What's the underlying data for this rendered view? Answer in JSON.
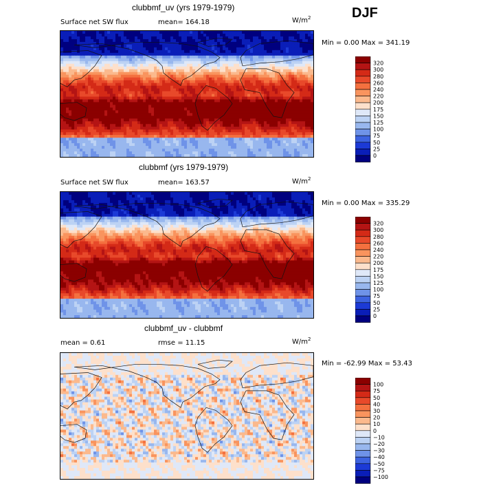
{
  "season": "DJF",
  "panels": [
    {
      "title": "clubbmf_uv (yrs 1979-1979)",
      "left_label": "Surface net SW flux",
      "stat_label": "mean= 164.18",
      "units": "W/m",
      "units_exp": "2",
      "min_text": "Min =    0.00 Max = 341.19",
      "colorbar_labels": [
        "320",
        "300",
        "280",
        "260",
        "240",
        "220",
        "200",
        "175",
        "150",
        "125",
        "100",
        "75",
        "50",
        "25",
        "0"
      ],
      "colorbar_colors": [
        "#8b0000",
        "#b41414",
        "#d42a17",
        "#e8492a",
        "#f4703f",
        "#f9945e",
        "#fbb98d",
        "#fde0cb",
        "#dfe8f8",
        "#bcd2f4",
        "#98b7ee",
        "#6f93e8",
        "#3d63e0",
        "#1c3ad6",
        "#0a1eb8",
        "#00007f"
      ],
      "field": "sw"
    },
    {
      "title": "clubbmf (yrs 1979-1979)",
      "left_label": "Surface net SW flux",
      "stat_label": "mean= 163.57",
      "units": "W/m",
      "units_exp": "2",
      "min_text": "Min =    0.00 Max = 335.29",
      "colorbar_labels": [
        "320",
        "300",
        "280",
        "260",
        "240",
        "220",
        "200",
        "175",
        "150",
        "125",
        "100",
        "75",
        "50",
        "25",
        "0"
      ],
      "colorbar_colors": [
        "#8b0000",
        "#b41414",
        "#d42a17",
        "#e8492a",
        "#f4703f",
        "#f9945e",
        "#fbb98d",
        "#fde0cb",
        "#dfe8f8",
        "#bcd2f4",
        "#98b7ee",
        "#6f93e8",
        "#3d63e0",
        "#1c3ad6",
        "#0a1eb8",
        "#00007f"
      ],
      "field": "sw"
    },
    {
      "title": "clubbmf_uv - clubbmf",
      "left_label": "mean =    0.61",
      "stat_label": "rmse =   11.15",
      "units": "W/m",
      "units_exp": "2",
      "min_text": "Min = -62.99 Max =  53.43",
      "colorbar_labels": [
        "100",
        "75",
        "50",
        "40",
        "30",
        "20",
        "10",
        "0",
        "−10",
        "−20",
        "−30",
        "−40",
        "−50",
        "−75",
        "−100"
      ],
      "colorbar_colors": [
        "#8b0000",
        "#b41414",
        "#d42a17",
        "#e8492a",
        "#f4703f",
        "#f9945e",
        "#fbb98d",
        "#fde0cb",
        "#dfe8f8",
        "#bcd2f4",
        "#98b7ee",
        "#6f93e8",
        "#3d63e0",
        "#1c3ad6",
        "#0a1eb8",
        "#00007f"
      ],
      "field": "diff"
    }
  ],
  "chart_data": {
    "type": "heatmap",
    "panels": [
      {
        "title": "clubbmf_uv (yrs 1979-1979)",
        "variable": "Surface net SW flux",
        "mean": 164.18,
        "min": 0.0,
        "max": 341.19,
        "units": "W/m2",
        "levels": [
          0,
          25,
          50,
          75,
          100,
          125,
          150,
          175,
          200,
          220,
          240,
          260,
          280,
          300,
          320
        ]
      },
      {
        "title": "clubbmf (yrs 1979-1979)",
        "variable": "Surface net SW flux",
        "mean": 163.57,
        "min": 0.0,
        "max": 335.29,
        "units": "W/m2",
        "levels": [
          0,
          25,
          50,
          75,
          100,
          125,
          150,
          175,
          200,
          220,
          240,
          260,
          280,
          300,
          320
        ]
      },
      {
        "title": "clubbmf_uv - clubbmf",
        "mean": 0.61,
        "rmse": 11.15,
        "min": -62.99,
        "max": 53.43,
        "units": "W/m2",
        "levels": [
          -100,
          -75,
          -50,
          -40,
          -30,
          -20,
          -10,
          0,
          10,
          20,
          30,
          40,
          50,
          75,
          100
        ]
      }
    ]
  }
}
